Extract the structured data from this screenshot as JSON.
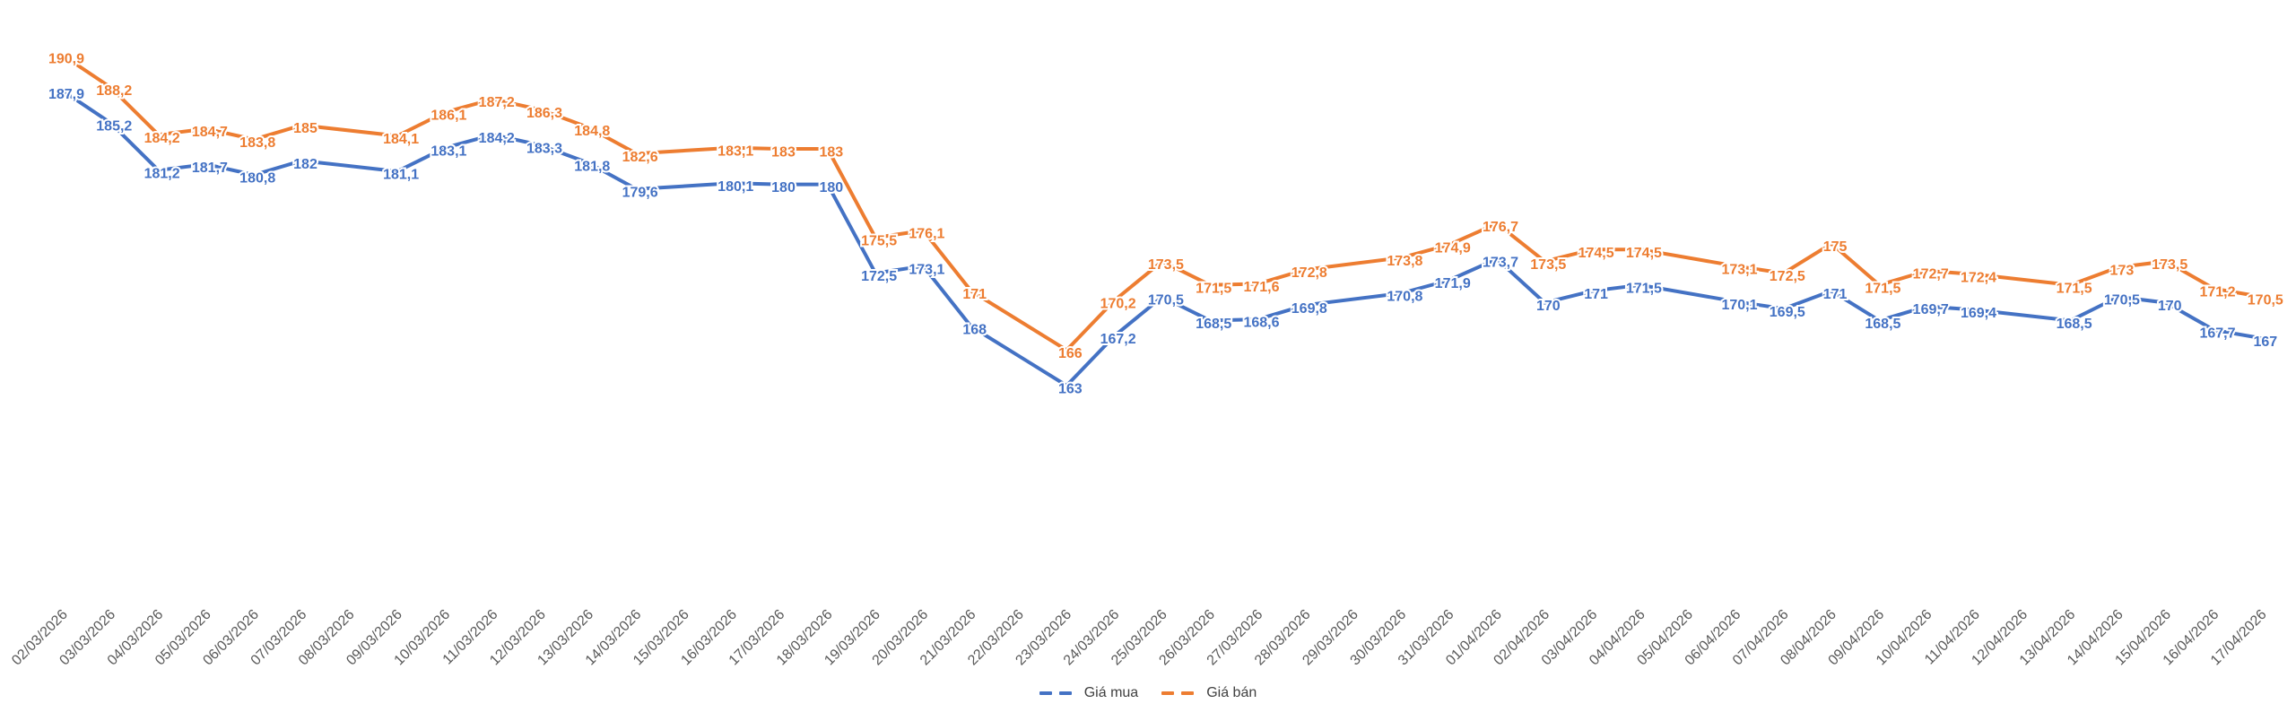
{
  "chart_data": {
    "type": "line",
    "title": "",
    "x_labels": [
      "02/03/2026",
      "03/03/2026",
      "04/03/2026",
      "05/03/2026",
      "06/03/2026",
      "07/03/2026",
      "08/03/2026",
      "09/03/2026",
      "10/03/2026",
      "11/03/2026",
      "12/03/2026",
      "13/03/2026",
      "14/03/2026",
      "15/03/2026",
      "16/03/2026",
      "17/03/2026",
      "18/03/2026",
      "19/03/2026",
      "20/03/2026",
      "21/03/2026",
      "22/03/2026",
      "23/03/2026",
      "24/03/2026",
      "25/03/2026",
      "26/03/2026",
      "27/03/2026",
      "28/03/2026",
      "29/03/2026",
      "30/03/2026",
      "31/03/2026",
      "01/04/2026",
      "02/04/2026",
      "03/04/2026",
      "04/04/2026",
      "05/04/2026",
      "06/04/2026",
      "07/04/2026",
      "08/04/2026",
      "09/04/2026",
      "10/04/2026",
      "11/04/2026",
      "12/04/2026",
      "13/04/2026",
      "14/04/2026",
      "15/04/2026",
      "16/04/2026",
      "17/04/2026"
    ],
    "series": [
      {
        "id": "gia-mua",
        "name": "Giá mua",
        "color": "#4472C4",
        "values": [
          187.9,
          185.2,
          181.2,
          181.7,
          180.8,
          182,
          null,
          181.1,
          183.1,
          184.2,
          183.3,
          181.8,
          179.6,
          null,
          180.1,
          180,
          180,
          172.5,
          173.1,
          168,
          null,
          163,
          167.2,
          170.5,
          168.5,
          168.6,
          169.8,
          null,
          170.8,
          171.9,
          173.7,
          170,
          171,
          171.5,
          null,
          170.1,
          169.5,
          171,
          168.5,
          169.7,
          169.4,
          null,
          168.5,
          170.5,
          170,
          167.7,
          167
        ]
      },
      {
        "id": "gia-ban",
        "name": "Giá bán",
        "color": "#ED7D31",
        "values": [
          190.9,
          188.2,
          184.2,
          184.7,
          183.8,
          185,
          null,
          184.1,
          186.1,
          187.2,
          186.3,
          184.8,
          182.6,
          null,
          183.1,
          183,
          183,
          175.5,
          176.1,
          171,
          null,
          166,
          170.2,
          173.5,
          171.5,
          171.6,
          172.8,
          null,
          173.8,
          174.9,
          176.7,
          173.5,
          174.5,
          174.5,
          null,
          173.1,
          172.5,
          175,
          171.5,
          172.7,
          172.4,
          null,
          171.5,
          173,
          173.5,
          171.2,
          170.5
        ]
      }
    ],
    "xlabel": "",
    "ylabel": "",
    "ylim": [
      160,
      193
    ],
    "grid": false,
    "axes_visible": false,
    "legend_position": "bottom-center",
    "decimal_separator": ",",
    "axis_label_color": "#595959",
    "legend_text_color": "#404040",
    "background": "#ffffff"
  }
}
